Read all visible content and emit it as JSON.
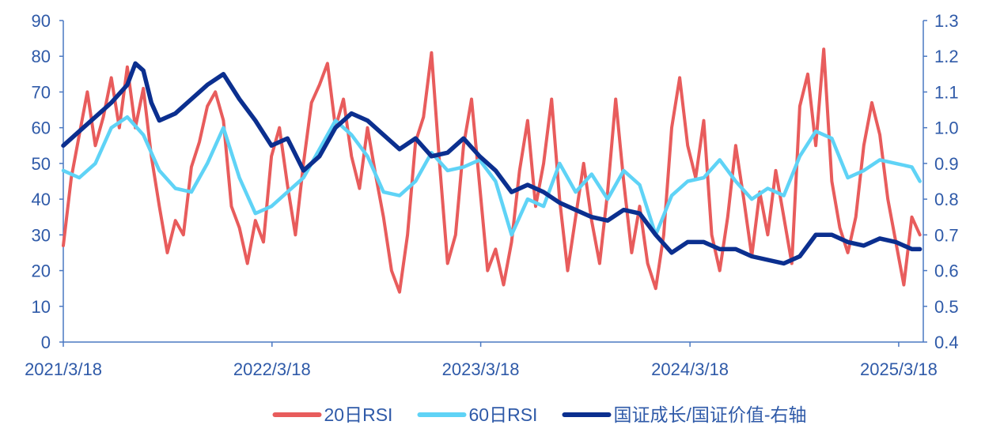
{
  "chart_data": {
    "type": "line",
    "title": "",
    "colors": {
      "axis": "#4a78c2",
      "tick_text": "#2f5aa8",
      "rsi20": "#e85c5c",
      "rsi60": "#5fd3f6",
      "ratio": "#0b2f8f"
    },
    "x_axis": {
      "start": "2021-03-18",
      "end": "2025-04-30",
      "tick_dates": [
        "2021-03-18",
        "2022-03-18",
        "2023-03-18",
        "2024-03-18",
        "2025-03-18"
      ],
      "tick_labels": [
        "2021/3/18",
        "2022/3/18",
        "2023/3/18",
        "2024/3/18",
        "2025/3/18"
      ]
    },
    "y_left": {
      "min": 0,
      "max": 90,
      "ticks": [
        0,
        10,
        20,
        30,
        40,
        50,
        60,
        70,
        80,
        90
      ],
      "tick_labels": [
        "0",
        "10",
        "20",
        "30",
        "40",
        "50",
        "60",
        "70",
        "80",
        "90"
      ]
    },
    "y_right": {
      "min": 0.4,
      "max": 1.3,
      "ticks": [
        0.4,
        0.5,
        0.6,
        0.7,
        0.8,
        0.9,
        1.0,
        1.1,
        1.2,
        1.3
      ],
      "tick_labels": [
        "0.4",
        "0.5",
        "0.6",
        "0.7",
        "0.8",
        "0.9",
        "1.0",
        "1.1",
        "1.2",
        "1.3"
      ]
    },
    "legend": {
      "position": "bottom",
      "items": [
        {
          "key": "rsi20",
          "label": "20日RSI"
        },
        {
          "key": "rsi60",
          "label": "60日RSI"
        },
        {
          "key": "ratio",
          "label": "国证成长/国证价值-右轴"
        }
      ]
    },
    "series": [
      {
        "key": "rsi20",
        "name": "20日RSI",
        "axis": "left",
        "points": [
          [
            "2021-03-18",
            27
          ],
          [
            "2021-04-01",
            46
          ],
          [
            "2021-04-15",
            58
          ],
          [
            "2021-04-29",
            70
          ],
          [
            "2021-05-13",
            55
          ],
          [
            "2021-05-27",
            63
          ],
          [
            "2021-06-10",
            74
          ],
          [
            "2021-06-24",
            60
          ],
          [
            "2021-07-08",
            77
          ],
          [
            "2021-07-22",
            60
          ],
          [
            "2021-08-05",
            71
          ],
          [
            "2021-08-19",
            52
          ],
          [
            "2021-09-02",
            38
          ],
          [
            "2021-09-16",
            25
          ],
          [
            "2021-09-30",
            34
          ],
          [
            "2021-10-14",
            30
          ],
          [
            "2021-10-28",
            49
          ],
          [
            "2021-11-11",
            56
          ],
          [
            "2021-11-25",
            66
          ],
          [
            "2021-12-09",
            70
          ],
          [
            "2021-12-23",
            62
          ],
          [
            "2022-01-06",
            38
          ],
          [
            "2022-01-20",
            32
          ],
          [
            "2022-02-03",
            22
          ],
          [
            "2022-02-17",
            34
          ],
          [
            "2022-03-03",
            28
          ],
          [
            "2022-03-17",
            52
          ],
          [
            "2022-03-31",
            60
          ],
          [
            "2022-04-14",
            44
          ],
          [
            "2022-04-28",
            30
          ],
          [
            "2022-05-12",
            50
          ],
          [
            "2022-05-26",
            67
          ],
          [
            "2022-06-09",
            72
          ],
          [
            "2022-06-23",
            78
          ],
          [
            "2022-07-07",
            60
          ],
          [
            "2022-07-21",
            68
          ],
          [
            "2022-08-04",
            52
          ],
          [
            "2022-08-18",
            43
          ],
          [
            "2022-09-01",
            60
          ],
          [
            "2022-09-15",
            47
          ],
          [
            "2022-09-29",
            35
          ],
          [
            "2022-10-13",
            20
          ],
          [
            "2022-10-27",
            14
          ],
          [
            "2022-11-10",
            30
          ],
          [
            "2022-11-24",
            56
          ],
          [
            "2022-12-08",
            63
          ],
          [
            "2022-12-22",
            81
          ],
          [
            "2023-01-05",
            50
          ],
          [
            "2023-01-19",
            22
          ],
          [
            "2023-02-02",
            30
          ],
          [
            "2023-02-16",
            55
          ],
          [
            "2023-03-02",
            68
          ],
          [
            "2023-03-16",
            44
          ],
          [
            "2023-03-30",
            20
          ],
          [
            "2023-04-13",
            26
          ],
          [
            "2023-04-27",
            16
          ],
          [
            "2023-05-11",
            28
          ],
          [
            "2023-05-25",
            48
          ],
          [
            "2023-06-08",
            62
          ],
          [
            "2023-06-22",
            38
          ],
          [
            "2023-07-06",
            50
          ],
          [
            "2023-07-20",
            68
          ],
          [
            "2023-08-03",
            40
          ],
          [
            "2023-08-17",
            20
          ],
          [
            "2023-08-31",
            35
          ],
          [
            "2023-09-14",
            50
          ],
          [
            "2023-09-28",
            34
          ],
          [
            "2023-10-12",
            22
          ],
          [
            "2023-10-26",
            42
          ],
          [
            "2023-11-09",
            68
          ],
          [
            "2023-11-23",
            45
          ],
          [
            "2023-12-07",
            25
          ],
          [
            "2023-12-21",
            38
          ],
          [
            "2024-01-04",
            22
          ],
          [
            "2024-01-18",
            15
          ],
          [
            "2024-02-01",
            30
          ],
          [
            "2024-02-15",
            60
          ],
          [
            "2024-02-29",
            74
          ],
          [
            "2024-03-14",
            55
          ],
          [
            "2024-03-28",
            46
          ],
          [
            "2024-04-11",
            62
          ],
          [
            "2024-04-25",
            30
          ],
          [
            "2024-05-09",
            20
          ],
          [
            "2024-05-23",
            35
          ],
          [
            "2024-06-06",
            55
          ],
          [
            "2024-06-20",
            40
          ],
          [
            "2024-07-04",
            24
          ],
          [
            "2024-07-18",
            42
          ],
          [
            "2024-08-01",
            30
          ],
          [
            "2024-08-15",
            48
          ],
          [
            "2024-08-29",
            35
          ],
          [
            "2024-09-12",
            22
          ],
          [
            "2024-09-26",
            66
          ],
          [
            "2024-10-10",
            75
          ],
          [
            "2024-10-24",
            55
          ],
          [
            "2024-11-07",
            82
          ],
          [
            "2024-11-21",
            45
          ],
          [
            "2024-12-05",
            32
          ],
          [
            "2024-12-19",
            25
          ],
          [
            "2025-01-02",
            35
          ],
          [
            "2025-01-16",
            55
          ],
          [
            "2025-01-30",
            67
          ],
          [
            "2025-02-13",
            58
          ],
          [
            "2025-02-27",
            40
          ],
          [
            "2025-03-13",
            28
          ],
          [
            "2025-03-27",
            16
          ],
          [
            "2025-04-10",
            35
          ],
          [
            "2025-04-24",
            30
          ]
        ]
      },
      {
        "key": "rsi60",
        "name": "60日RSI",
        "axis": "left",
        "points": [
          [
            "2021-03-18",
            48
          ],
          [
            "2021-04-15",
            46
          ],
          [
            "2021-05-13",
            50
          ],
          [
            "2021-06-10",
            60
          ],
          [
            "2021-07-08",
            63
          ],
          [
            "2021-08-05",
            58
          ],
          [
            "2021-09-02",
            48
          ],
          [
            "2021-09-30",
            43
          ],
          [
            "2021-10-28",
            42
          ],
          [
            "2021-11-25",
            50
          ],
          [
            "2021-12-23",
            60
          ],
          [
            "2022-01-20",
            46
          ],
          [
            "2022-02-17",
            36
          ],
          [
            "2022-03-17",
            38
          ],
          [
            "2022-04-14",
            42
          ],
          [
            "2022-05-12",
            46
          ],
          [
            "2022-06-09",
            54
          ],
          [
            "2022-07-07",
            62
          ],
          [
            "2022-08-04",
            58
          ],
          [
            "2022-09-01",
            52
          ],
          [
            "2022-09-29",
            42
          ],
          [
            "2022-10-27",
            41
          ],
          [
            "2022-11-24",
            45
          ],
          [
            "2022-12-22",
            53
          ],
          [
            "2023-01-19",
            48
          ],
          [
            "2023-02-16",
            49
          ],
          [
            "2023-03-16",
            51
          ],
          [
            "2023-04-13",
            45
          ],
          [
            "2023-05-11",
            30
          ],
          [
            "2023-06-08",
            40
          ],
          [
            "2023-07-06",
            38
          ],
          [
            "2023-08-03",
            50
          ],
          [
            "2023-08-31",
            42
          ],
          [
            "2023-09-28",
            47
          ],
          [
            "2023-10-26",
            40
          ],
          [
            "2023-11-23",
            48
          ],
          [
            "2023-12-21",
            44
          ],
          [
            "2024-01-18",
            30
          ],
          [
            "2024-02-15",
            41
          ],
          [
            "2024-03-14",
            45
          ],
          [
            "2024-04-11",
            46
          ],
          [
            "2024-05-09",
            51
          ],
          [
            "2024-06-06",
            45
          ],
          [
            "2024-07-04",
            40
          ],
          [
            "2024-08-01",
            43
          ],
          [
            "2024-08-29",
            41
          ],
          [
            "2024-09-26",
            52
          ],
          [
            "2024-10-24",
            59
          ],
          [
            "2024-11-21",
            57
          ],
          [
            "2024-12-19",
            46
          ],
          [
            "2025-01-16",
            48
          ],
          [
            "2025-02-13",
            51
          ],
          [
            "2025-03-13",
            50
          ],
          [
            "2025-04-10",
            49
          ],
          [
            "2025-04-24",
            45
          ]
        ]
      },
      {
        "key": "ratio",
        "name": "国证成长/国证价值-右轴",
        "axis": "right",
        "points": [
          [
            "2021-03-18",
            0.95
          ],
          [
            "2021-04-15",
            0.99
          ],
          [
            "2021-05-13",
            1.03
          ],
          [
            "2021-06-10",
            1.07
          ],
          [
            "2021-07-08",
            1.12
          ],
          [
            "2021-07-22",
            1.18
          ],
          [
            "2021-08-05",
            1.16
          ],
          [
            "2021-08-19",
            1.07
          ],
          [
            "2021-09-02",
            1.02
          ],
          [
            "2021-09-30",
            1.04
          ],
          [
            "2021-10-28",
            1.08
          ],
          [
            "2021-11-25",
            1.12
          ],
          [
            "2021-12-23",
            1.15
          ],
          [
            "2022-01-20",
            1.08
          ],
          [
            "2022-02-17",
            1.02
          ],
          [
            "2022-03-17",
            0.95
          ],
          [
            "2022-04-14",
            0.97
          ],
          [
            "2022-05-12",
            0.88
          ],
          [
            "2022-06-09",
            0.92
          ],
          [
            "2022-07-07",
            1.0
          ],
          [
            "2022-08-04",
            1.04
          ],
          [
            "2022-09-01",
            1.02
          ],
          [
            "2022-09-29",
            0.98
          ],
          [
            "2022-10-27",
            0.94
          ],
          [
            "2022-11-24",
            0.97
          ],
          [
            "2022-12-22",
            0.92
          ],
          [
            "2023-01-19",
            0.93
          ],
          [
            "2023-02-16",
            0.97
          ],
          [
            "2023-03-16",
            0.92
          ],
          [
            "2023-04-13",
            0.88
          ],
          [
            "2023-05-11",
            0.82
          ],
          [
            "2023-06-08",
            0.84
          ],
          [
            "2023-07-06",
            0.82
          ],
          [
            "2023-08-03",
            0.79
          ],
          [
            "2023-08-31",
            0.77
          ],
          [
            "2023-09-28",
            0.75
          ],
          [
            "2023-10-26",
            0.74
          ],
          [
            "2023-11-23",
            0.77
          ],
          [
            "2023-12-21",
            0.76
          ],
          [
            "2024-01-18",
            0.7
          ],
          [
            "2024-02-15",
            0.65
          ],
          [
            "2024-03-14",
            0.68
          ],
          [
            "2024-04-11",
            0.68
          ],
          [
            "2024-05-09",
            0.66
          ],
          [
            "2024-06-06",
            0.66
          ],
          [
            "2024-07-04",
            0.64
          ],
          [
            "2024-08-01",
            0.63
          ],
          [
            "2024-08-29",
            0.62
          ],
          [
            "2024-09-26",
            0.64
          ],
          [
            "2024-10-24",
            0.7
          ],
          [
            "2024-11-21",
            0.7
          ],
          [
            "2024-12-19",
            0.68
          ],
          [
            "2025-01-16",
            0.67
          ],
          [
            "2025-02-13",
            0.69
          ],
          [
            "2025-03-13",
            0.68
          ],
          [
            "2025-04-10",
            0.66
          ],
          [
            "2025-04-24",
            0.66
          ]
        ]
      }
    ]
  }
}
